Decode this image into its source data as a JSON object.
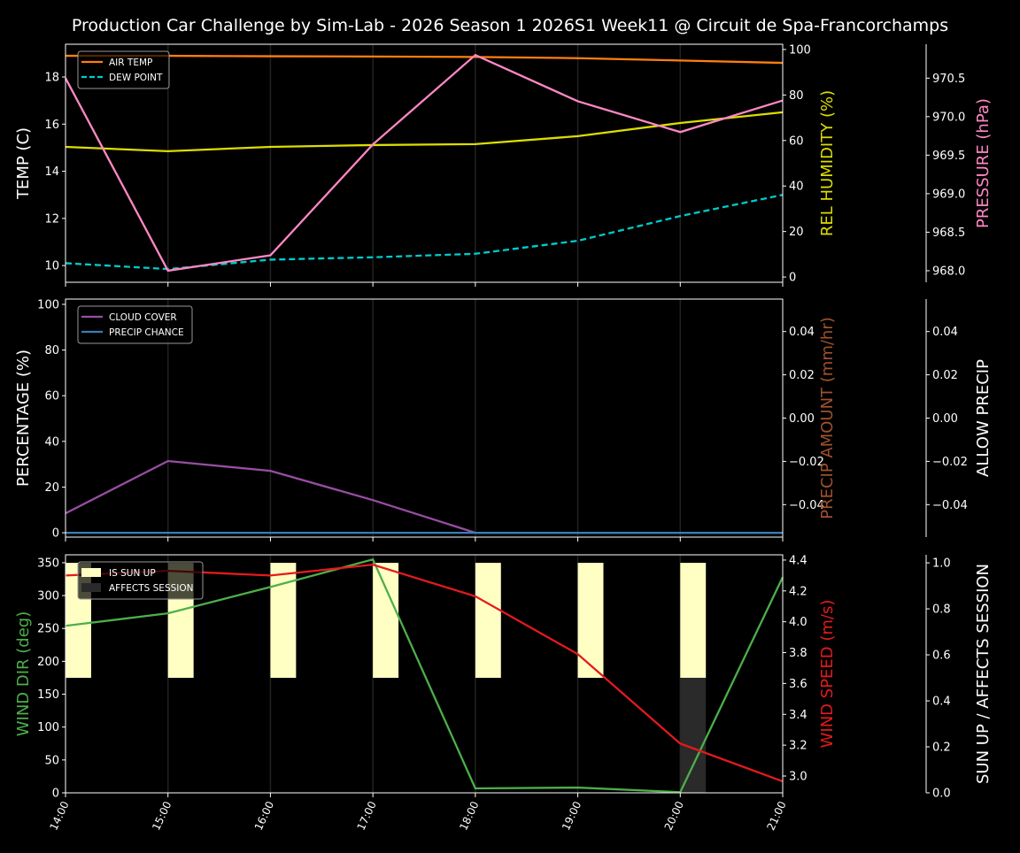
{
  "title": "Production Car Challenge by Sim-Lab - 2026 Season 1 2026S1 Week11 @ Circuit de Spa-Francorchamps",
  "chart_data": [
    {
      "type": "line",
      "x": [
        "14:00",
        "15:00",
        "16:00",
        "17:00",
        "18:00",
        "19:00",
        "20:00",
        "21:00"
      ],
      "grid": "vertical",
      "legend": "top-left",
      "axes": {
        "left": {
          "label": "TEMP (C)",
          "ylim": [
            9.29,
            19.39
          ],
          "ticks": [
            10,
            12,
            14,
            16,
            18
          ],
          "color": "#ffffff"
        },
        "right": {
          "label": "REL HUMIDITY (%)",
          "ylim": [
            -2.3,
            102.3
          ],
          "ticks": [
            0,
            20,
            40,
            60,
            80,
            100
          ],
          "color": "#dddd00"
        },
        "right2": {
          "label": "PRESSURE (hPa)",
          "ylim": [
            967.85,
            970.94
          ],
          "ticks": [
            "968.0",
            "968.5",
            "969.0",
            "969.5",
            "970.0",
            "970.5"
          ],
          "color": "#ff88c4"
        }
      },
      "series": [
        {
          "name": "AIR TEMP",
          "axis": "left",
          "color": "#ff7f0e",
          "dash": false,
          "legend": true,
          "values": [
            18.9,
            18.9,
            18.88,
            18.87,
            18.85,
            18.8,
            18.7,
            18.6
          ]
        },
        {
          "name": "DEW POINT",
          "axis": "left",
          "color": "#00cccc",
          "dash": true,
          "legend": true,
          "values": [
            10.1,
            9.85,
            10.25,
            10.35,
            10.5,
            11.05,
            12.1,
            13.0
          ]
        },
        {
          "axis": "right",
          "color": "#dddd00",
          "dash": false,
          "values": [
            57.2,
            55.3,
            57.2,
            58.0,
            58.4,
            61.9,
            67.7,
            72.4
          ]
        },
        {
          "axis": "right2",
          "color": "#ff88c4",
          "dash": false,
          "values": [
            970.5,
            968.0,
            968.2,
            969.64,
            970.8,
            970.2,
            969.8,
            970.21
          ]
        }
      ]
    },
    {
      "type": "line",
      "x": [
        "14:00",
        "15:00",
        "16:00",
        "17:00",
        "18:00",
        "19:00",
        "20:00",
        "21:00"
      ],
      "grid": "vertical",
      "legend": "top-left",
      "axes": {
        "left": {
          "label": "PERCENTAGE (%)",
          "ylim": [
            -1.9,
            102.3
          ],
          "ticks": [
            0,
            20,
            40,
            60,
            80,
            100
          ],
          "color": "#ffffff"
        },
        "right": {
          "label": "PRECIP AMOUNT (mm/hr)",
          "ylim": [
            -0.055,
            0.055
          ],
          "ticks": [
            "−0.04",
            "−0.02",
            "0.00",
            "0.02",
            "0.04"
          ],
          "tickvals": [
            -0.04,
            -0.02,
            0,
            0.02,
            0.04
          ],
          "color": "#a0522d"
        },
        "right2": {
          "label": "ALLOW PRECIP",
          "ylim": [
            -0.055,
            0.055
          ],
          "ticks": [
            "−0.04",
            "−0.02",
            "0.00",
            "0.02",
            "0.04"
          ],
          "tickvals": [
            -0.04,
            -0.02,
            0,
            0.02,
            0.04
          ],
          "color": "#ffffff"
        }
      },
      "series": [
        {
          "name": "CLOUD COVER",
          "axis": "left",
          "color": "#984ea3",
          "dash": false,
          "legend": true,
          "values": [
            8.5,
            31.4,
            27.1,
            14.3,
            0,
            0,
            0,
            0
          ]
        },
        {
          "name": "PRECIP CHANCE",
          "axis": "left",
          "color": "#377eb8",
          "dash": false,
          "legend": true,
          "values": [
            0,
            0,
            0,
            0,
            0,
            0,
            0,
            0
          ]
        }
      ]
    },
    {
      "type": "line",
      "x": [
        "14:00",
        "15:00",
        "16:00",
        "17:00",
        "18:00",
        "19:00",
        "20:00",
        "21:00"
      ],
      "grid": "vertical",
      "legend": "top-left",
      "axes": {
        "left": {
          "label": "WIND DIR (deg)",
          "ylim": [
            0,
            362
          ],
          "ticks": [
            0,
            50,
            100,
            150,
            200,
            250,
            300,
            350
          ],
          "color": "#4daf4a"
        },
        "right": {
          "label": "WIND SPEED (m/s)",
          "ylim": [
            2.891,
            4.434
          ],
          "ticks": [
            "3.0",
            "3.2",
            "3.4",
            "3.6",
            "3.8",
            "4.0",
            "4.2",
            "4.4"
          ],
          "color": "#e41a1c"
        },
        "right2": {
          "label": "SUN UP / AFFECTS SESSION",
          "ylim": [
            0,
            1.035
          ],
          "ticks": [
            "0.0",
            "0.2",
            "0.4",
            "0.6",
            "0.8",
            "1.0"
          ],
          "color": "#ffffff"
        }
      },
      "bars": [
        {
          "name": "IS SUN UP",
          "color": "#ffffc4",
          "values": [
            1,
            1,
            1,
            1,
            1,
            1,
            1,
            0
          ]
        },
        {
          "name": "AFFECTS SESSION",
          "color": "#2a2a2a",
          "values": [
            0,
            0,
            0,
            0,
            0,
            0,
            1,
            0
          ]
        }
      ],
      "series": [
        {
          "axis": "left",
          "color": "#4daf4a",
          "dash": false,
          "values": [
            254,
            273,
            313,
            355,
            6.7,
            8,
            1,
            328
          ]
        },
        {
          "axis": "right",
          "color": "#e41a1c",
          "dash": false,
          "values": [
            4.3,
            4.33,
            4.3,
            4.37,
            4.165,
            3.79,
            3.21,
            2.965
          ]
        }
      ]
    }
  ]
}
